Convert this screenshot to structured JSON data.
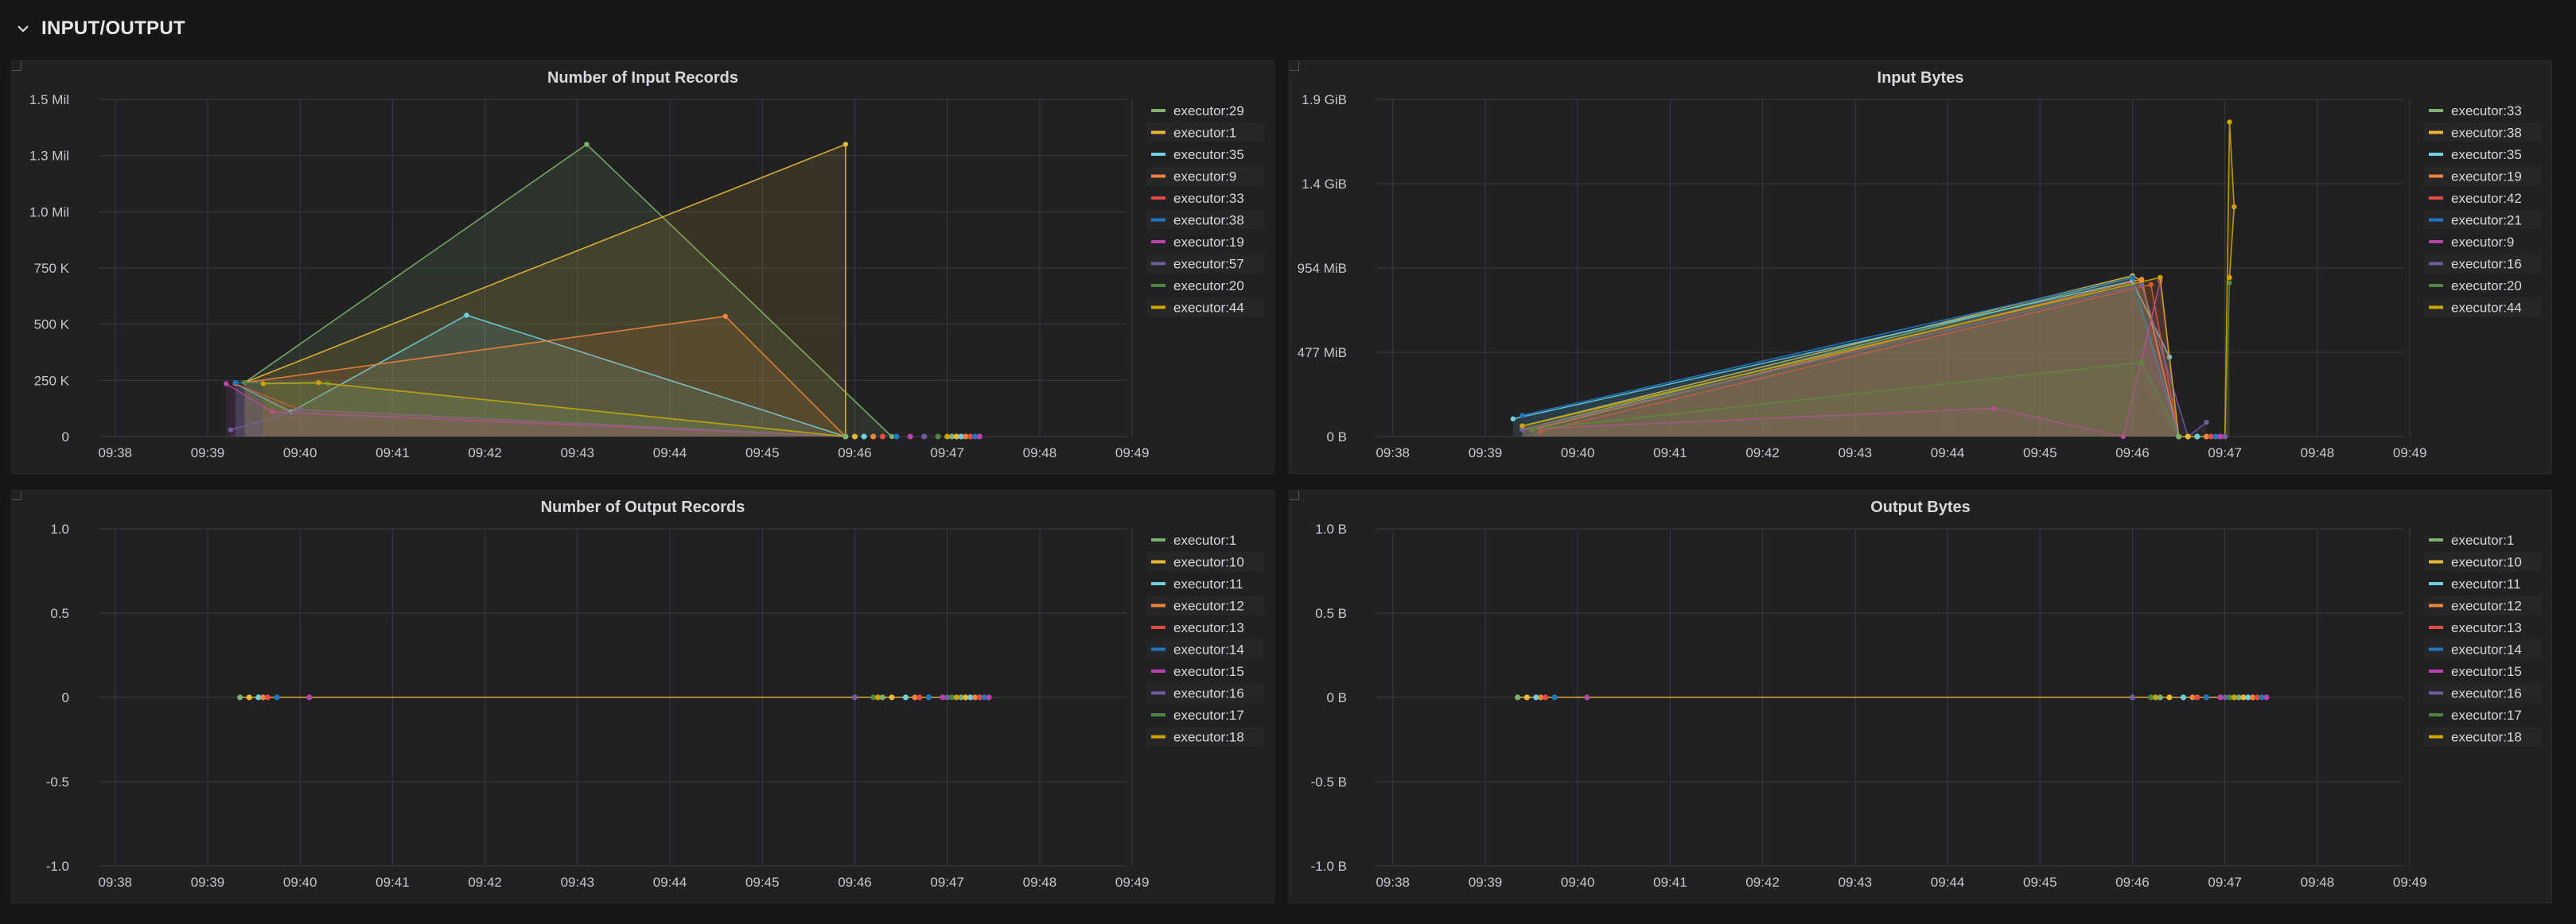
{
  "row": {
    "title": "INPUT/OUTPUT",
    "icon": "chevron-down-icon"
  },
  "panels": [
    {
      "id": "input-records",
      "title": "Number of Input Records",
      "chart_data": {
        "type": "area",
        "title": "Number of Input Records",
        "x_ticks": [
          "09:38",
          "09:39",
          "09:40",
          "09:41",
          "09:42",
          "09:43",
          "09:44",
          "09:45",
          "09:46",
          "09:47",
          "09:48",
          "09:49"
        ],
        "xlim": [
          0,
          11.1
        ],
        "y_ticks": [
          {
            "v": 0,
            "label": "0"
          },
          {
            "v": 250000,
            "label": "250 K"
          },
          {
            "v": 500000,
            "label": "500 K"
          },
          {
            "v": 750000,
            "label": "750 K"
          },
          {
            "v": 1000000,
            "label": "1.0 Mil"
          },
          {
            "v": 1250000,
            "label": "1.3 Mil"
          },
          {
            "v": 1500000,
            "label": "1.5 Mil"
          }
        ],
        "ylim": [
          0,
          1500000
        ],
        "legend": [
          "executor:29",
          "executor:1",
          "executor:35",
          "executor:9",
          "executor:33",
          "executor:38",
          "executor:19",
          "executor:57",
          "executor:20",
          "executor:44"
        ],
        "series": [
          {
            "name": "executor:29",
            "color": "#7eb26d",
            "x": [
              1.4,
              5.1,
              8.4
            ],
            "y": [
              240000,
              1300000,
              0
            ]
          },
          {
            "name": "executor:1",
            "color": "#eab839",
            "x": [
              1.4,
              7.9,
              7.9
            ],
            "y": [
              240000,
              1300000,
              0
            ]
          },
          {
            "name": "executor:35",
            "color": "#6ed0e0",
            "x": [
              1.3,
              1.9,
              3.8,
              7.9
            ],
            "y": [
              235000,
              110000,
              540000,
              0
            ]
          },
          {
            "name": "executor:9",
            "color": "#ef843c",
            "x": [
              1.4,
              6.6,
              7.9
            ],
            "y": [
              240000,
              535000,
              0
            ]
          },
          {
            "name": "executor:33",
            "color": "#e24d42",
            "x": [
              1.3,
              2.0,
              7.9
            ],
            "y": [
              235000,
              120000,
              0
            ]
          },
          {
            "name": "executor:38",
            "color": "#1f78c1",
            "x": [
              1.3,
              2.2,
              7.9
            ],
            "y": [
              240000,
              240000,
              0
            ]
          },
          {
            "name": "executor:19",
            "color": "#ba43a9",
            "x": [
              1.2,
              1.7,
              7.9
            ],
            "y": [
              235000,
              110000,
              0
            ]
          },
          {
            "name": "executor:57",
            "color": "#705da0",
            "x": [
              1.25,
              2.0,
              7.9
            ],
            "y": [
              30000,
              120000,
              0
            ]
          },
          {
            "name": "executor:20",
            "color": "#508642",
            "x": [
              1.4,
              2.3,
              7.9
            ],
            "y": [
              240000,
              235000,
              0
            ]
          },
          {
            "name": "executor:44",
            "color": "#cca300",
            "x": [
              1.6,
              2.2,
              7.9
            ],
            "y": [
              235000,
              240000,
              0
            ]
          }
        ],
        "zero_points": [
          7.9,
          8.0,
          8.1,
          8.2,
          8.3,
          8.45,
          8.6,
          8.75,
          8.9,
          9.0,
          9.05,
          9.1,
          9.15,
          9.2,
          9.25,
          9.3,
          9.35
        ]
      }
    },
    {
      "id": "input-bytes",
      "title": "Input Bytes",
      "chart_data": {
        "type": "area",
        "title": "Input Bytes",
        "x_ticks": [
          "09:38",
          "09:39",
          "09:40",
          "09:41",
          "09:42",
          "09:43",
          "09:44",
          "09:45",
          "09:46",
          "09:47",
          "09:48",
          "09:49"
        ],
        "xlim": [
          0,
          11.1
        ],
        "y_ticks": [
          {
            "v": 0,
            "label": "0 B"
          },
          {
            "v": 477,
            "label": "477 MiB"
          },
          {
            "v": 954,
            "label": "954 MiB"
          },
          {
            "v": 1431,
            "label": "1.4 GiB"
          },
          {
            "v": 1908,
            "label": "1.9 GiB"
          }
        ],
        "ylim": [
          0,
          1908
        ],
        "legend": [
          "executor:33",
          "executor:38",
          "executor:35",
          "executor:19",
          "executor:42",
          "executor:21",
          "executor:9",
          "executor:16",
          "executor:20",
          "executor:44"
        ],
        "series": [
          {
            "name": "executor:33",
            "color": "#7eb26d",
            "x": [
              1.4,
              8.0,
              8.5
            ],
            "y": [
              40,
              900,
              0
            ]
          },
          {
            "name": "executor:38",
            "color": "#eab839",
            "x": [
              1.4,
              8.0,
              8.1,
              8.5
            ],
            "y": [
              60,
              910,
              880,
              0
            ]
          },
          {
            "name": "executor:35",
            "color": "#6ed0e0",
            "x": [
              1.3,
              8.0,
              8.4,
              8.5
            ],
            "y": [
              100,
              880,
              450,
              0
            ]
          },
          {
            "name": "executor:19",
            "color": "#ef843c",
            "x": [
              1.5,
              8.1,
              8.5
            ],
            "y": [
              40,
              890,
              0
            ]
          },
          {
            "name": "executor:42",
            "color": "#e24d42",
            "x": [
              1.6,
              8.2,
              8.5
            ],
            "y": [
              30,
              860,
              0
            ]
          },
          {
            "name": "executor:21",
            "color": "#1f78c1",
            "x": [
              1.4,
              8.0,
              8.5
            ],
            "y": [
              120,
              900,
              0
            ]
          },
          {
            "name": "executor:9",
            "color": "#ba43a9",
            "x": [
              1.4,
              6.5,
              7.9,
              8.3,
              8.5
            ],
            "y": [
              40,
              160,
              0,
              880,
              0
            ]
          },
          {
            "name": "executor:16",
            "color": "#705da0",
            "x": [
              1.4,
              8.1,
              8.6,
              8.8
            ],
            "y": [
              40,
              860,
              0,
              80
            ]
          },
          {
            "name": "executor:20",
            "color": "#508642",
            "x": [
              1.5,
              8.1,
              8.5,
              9.0,
              9.05
            ],
            "y": [
              40,
              420,
              0,
              0,
              870
            ]
          },
          {
            "name": "executor:44",
            "color": "#cca300",
            "x": [
              1.4,
              8.3,
              8.5,
              9.0,
              9.05,
              9.1,
              9.05
            ],
            "y": [
              60,
              900,
              0,
              0,
              1780,
              1300,
              900
            ]
          }
        ],
        "zero_points": [
          8.5,
          8.6,
          8.7,
          8.8,
          8.85,
          8.9,
          8.95,
          9.0
        ]
      }
    },
    {
      "id": "output-records",
      "title": "Number of Output Records",
      "chart_data": {
        "type": "line",
        "title": "Number of Output Records",
        "x_ticks": [
          "09:38",
          "09:39",
          "09:40",
          "09:41",
          "09:42",
          "09:43",
          "09:44",
          "09:45",
          "09:46",
          "09:47",
          "09:48",
          "09:49"
        ],
        "xlim": [
          0,
          11.1
        ],
        "y_ticks": [
          {
            "v": -1,
            "label": "-1.0"
          },
          {
            "v": -0.5,
            "label": "-0.5"
          },
          {
            "v": 0,
            "label": "0"
          },
          {
            "v": 0.5,
            "label": "0.5"
          },
          {
            "v": 1,
            "label": "1.0"
          }
        ],
        "ylim": [
          -1,
          1
        ],
        "legend": [
          "executor:1",
          "executor:10",
          "executor:11",
          "executor:12",
          "executor:13",
          "executor:14",
          "executor:15",
          "executor:16",
          "executor:17",
          "executor:18"
        ],
        "series": [
          {
            "name": "executor:18",
            "color": "#eab839",
            "x": [
              1.35,
              9.45
            ],
            "y": [
              0,
              0
            ]
          }
        ],
        "zero_points": [
          1.35,
          1.45,
          1.55,
          1.6,
          1.65,
          1.75,
          2.1,
          8.0,
          8.2,
          8.25,
          8.3,
          8.4,
          8.55,
          8.65,
          8.7,
          8.8,
          8.95,
          9.0,
          9.05,
          9.1,
          9.15,
          9.2,
          9.25,
          9.3,
          9.35,
          9.4,
          9.45
        ]
      }
    },
    {
      "id": "output-bytes",
      "title": "Output Bytes",
      "chart_data": {
        "type": "line",
        "title": "Output Bytes",
        "x_ticks": [
          "09:38",
          "09:39",
          "09:40",
          "09:41",
          "09:42",
          "09:43",
          "09:44",
          "09:45",
          "09:46",
          "09:47",
          "09:48",
          "09:49"
        ],
        "xlim": [
          0,
          11.1
        ],
        "y_ticks": [
          {
            "v": -1,
            "label": "-1.0 B"
          },
          {
            "v": -0.5,
            "label": "-0.5 B"
          },
          {
            "v": 0,
            "label": "0 B"
          },
          {
            "v": 0.5,
            "label": "0.5 B"
          },
          {
            "v": 1,
            "label": "1.0 B"
          }
        ],
        "ylim": [
          -1,
          1
        ],
        "legend": [
          "executor:1",
          "executor:10",
          "executor:11",
          "executor:12",
          "executor:13",
          "executor:14",
          "executor:15",
          "executor:16",
          "executor:17",
          "executor:18"
        ],
        "series": [
          {
            "name": "executor:18",
            "color": "#eab839",
            "x": [
              1.35,
              9.45
            ],
            "y": [
              0,
              0
            ]
          }
        ],
        "zero_points": [
          1.35,
          1.45,
          1.55,
          1.6,
          1.65,
          1.75,
          2.1,
          8.0,
          8.2,
          8.25,
          8.3,
          8.4,
          8.55,
          8.65,
          8.7,
          8.8,
          8.95,
          9.0,
          9.05,
          9.1,
          9.15,
          9.2,
          9.25,
          9.3,
          9.35,
          9.4,
          9.45
        ]
      }
    }
  ],
  "legend_colors": [
    "#7eb26d",
    "#eab839",
    "#6ed0e0",
    "#ef843c",
    "#e24d42",
    "#1f78c1",
    "#ba43a9",
    "#705da0",
    "#508642",
    "#cca300"
  ]
}
